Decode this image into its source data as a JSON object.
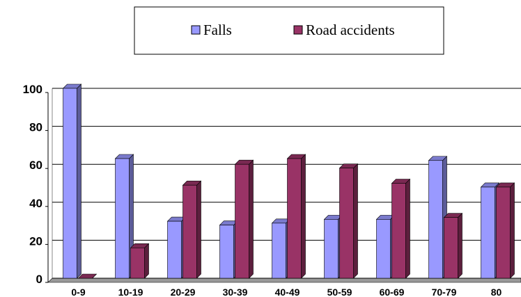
{
  "chart_data": {
    "type": "bar",
    "categories": [
      "0-9",
      "10-19",
      "20-29",
      "30-39",
      "40-49",
      "50-59",
      "60-69",
      "70-79",
      "80"
    ],
    "series": [
      {
        "name": "Falls",
        "color": "#9999ff",
        "values": [
          100,
          63,
          30,
          28,
          29,
          31,
          31,
          62,
          48
        ]
      },
      {
        "name": "Road accidents",
        "color": "#993366",
        "values": [
          0,
          16,
          49,
          60,
          63,
          58,
          50,
          32,
          48
        ]
      }
    ],
    "ylim": [
      0,
      100
    ],
    "yticks": [
      0,
      20,
      40,
      60,
      80,
      100
    ],
    "grid": true
  }
}
